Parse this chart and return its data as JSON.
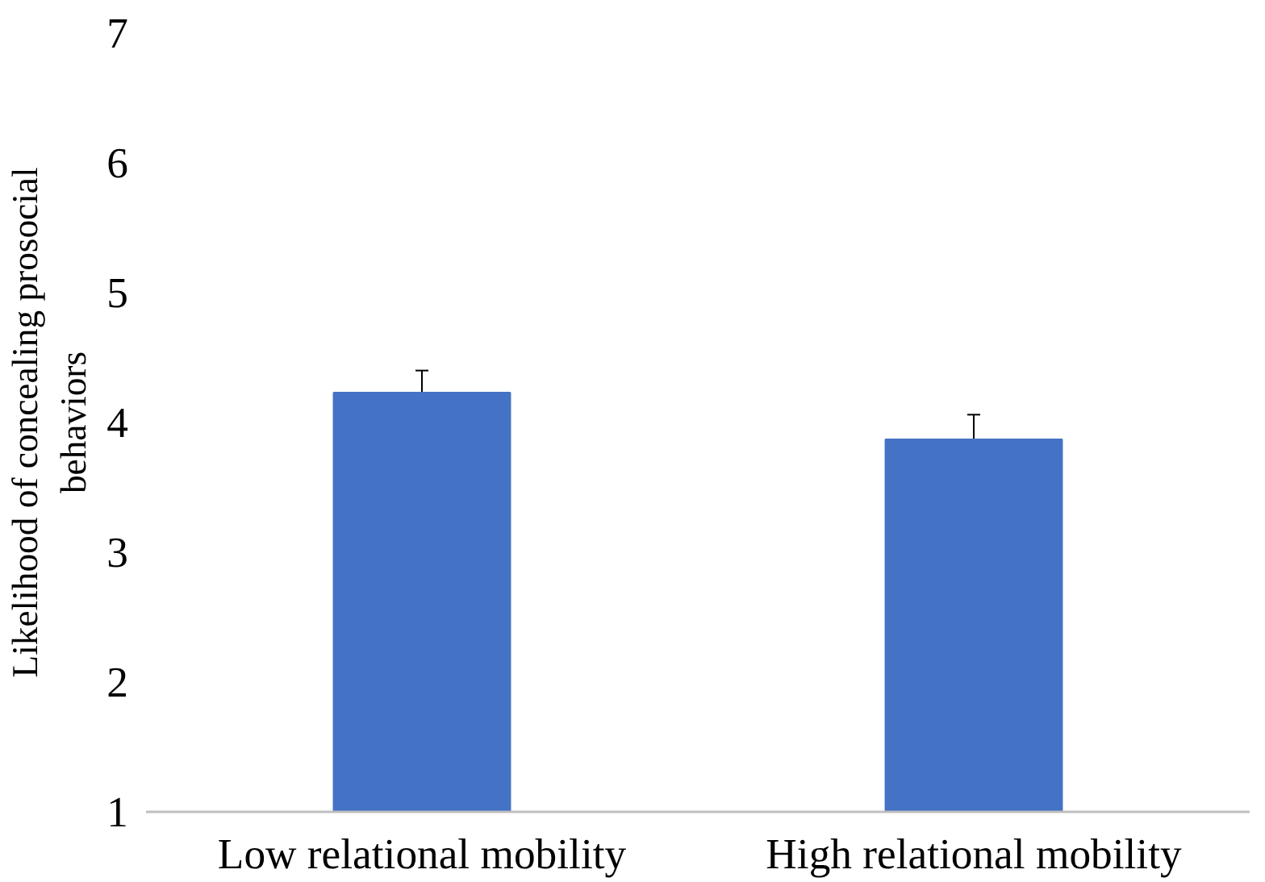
{
  "chart_data": {
    "type": "bar",
    "ylabel": "Likelihood of concealing prosocial behaviors",
    "categories": [
      "Low relational mobility",
      "High relational mobility"
    ],
    "values": [
      4.23,
      3.87
    ],
    "color": "#4472c4",
    "errors": [
      [
        4.23,
        4.4
      ],
      [
        3.87,
        4.06
      ]
    ],
    "ylim": [
      1,
      7
    ],
    "yticks": [
      1,
      2,
      3,
      4,
      5,
      6,
      7
    ],
    "grid": false
  }
}
